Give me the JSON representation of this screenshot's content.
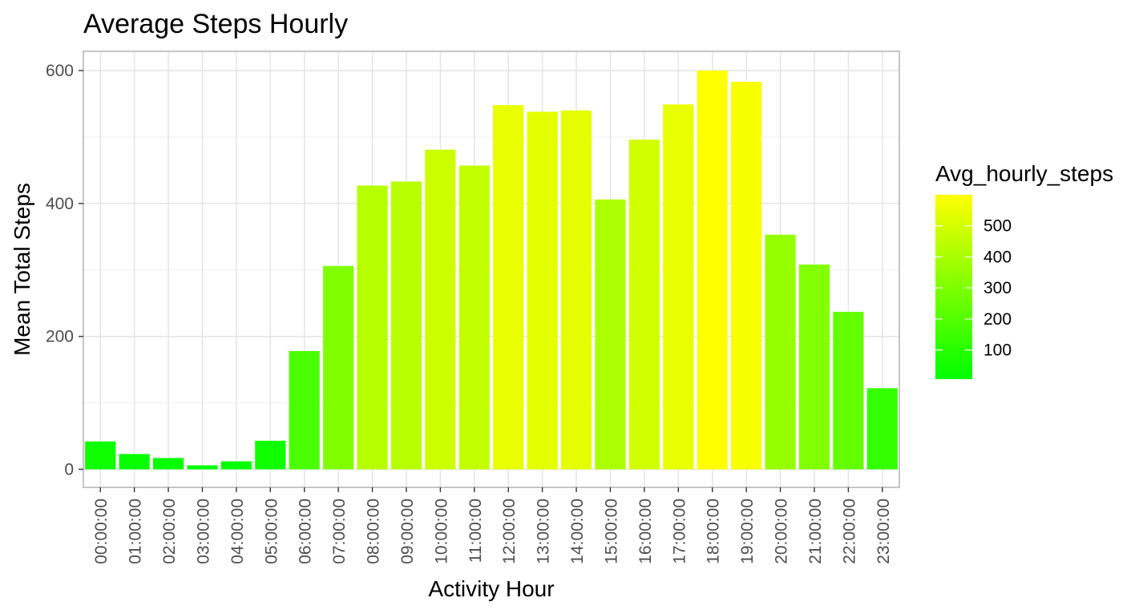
{
  "chart_data": {
    "type": "bar",
    "title": "Average Steps Hourly",
    "xlabel": "Activity Hour",
    "ylabel": "Mean Total Steps",
    "ylim": [
      0,
      628
    ],
    "y_ticks": [
      0,
      200,
      400,
      600
    ],
    "grid": true,
    "categories": [
      "00:00:00",
      "01:00:00",
      "02:00:00",
      "03:00:00",
      "04:00:00",
      "05:00:00",
      "06:00:00",
      "07:00:00",
      "08:00:00",
      "09:00:00",
      "10:00:00",
      "11:00:00",
      "12:00:00",
      "13:00:00",
      "14:00:00",
      "15:00:00",
      "16:00:00",
      "17:00:00",
      "18:00:00",
      "19:00:00",
      "20:00:00",
      "21:00:00",
      "22:00:00",
      "23:00:00"
    ],
    "values": [
      42,
      23,
      17,
      6,
      12,
      43,
      178,
      306,
      427,
      433,
      481,
      457,
      548,
      538,
      540,
      406,
      496,
      549,
      600,
      583,
      353,
      308,
      237,
      122
    ],
    "legend": {
      "title": "Avg_hourly_steps",
      "placement": "right",
      "type": "colorbar",
      "range": [
        6,
        600
      ],
      "ticks": [
        100,
        200,
        300,
        400,
        500
      ],
      "low_color": "#00ff00",
      "high_color": "#ffff00"
    }
  }
}
